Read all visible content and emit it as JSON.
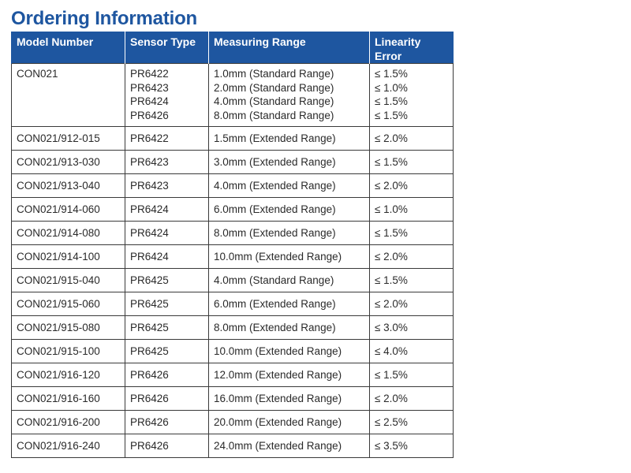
{
  "title": "Ordering Information",
  "table": {
    "headers": {
      "model": "Model Number",
      "sensor": "Sensor Type",
      "range": "Measuring Range",
      "linearity_line1": "Linearity",
      "linearity_line2": "Error"
    },
    "first_row": {
      "model": "CON021",
      "sensors": [
        "PR6422",
        "PR6423",
        "PR6424",
        "PR6426"
      ],
      "ranges": [
        "1.0mm (Standard Range)",
        "2.0mm (Standard Range)",
        "4.0mm (Standard Range)",
        "8.0mm (Standard Range)"
      ],
      "errors": [
        "≤ 1.5%",
        "≤ 1.0%",
        "≤ 1.5%",
        "≤ 1.5%"
      ]
    },
    "rows": [
      {
        "model": "CON021/912-015",
        "sensor": "PR6422",
        "range": "1.5mm (Extended Range)",
        "error": "≤ 2.0%"
      },
      {
        "model": "CON021/913-030",
        "sensor": "PR6423",
        "range": "3.0mm (Extended Range)",
        "error": "≤ 1.5%"
      },
      {
        "model": "CON021/913-040",
        "sensor": "PR6423",
        "range": "4.0mm (Extended Range)",
        "error": "≤ 2.0%"
      },
      {
        "model": "CON021/914-060",
        "sensor": "PR6424",
        "range": "6.0mm (Extended Range)",
        "error": "≤ 1.0%"
      },
      {
        "model": "CON021/914-080",
        "sensor": "PR6424",
        "range": "8.0mm (Extended Range)",
        "error": "≤ 1.5%"
      },
      {
        "model": "CON021/914-100",
        "sensor": "PR6424",
        "range": "10.0mm (Extended Range)",
        "error": "≤ 2.0%"
      },
      {
        "model": "CON021/915-040",
        "sensor": "PR6425",
        "range": "4.0mm (Standard Range)",
        "error": "≤ 1.5%"
      },
      {
        "model": "CON021/915-060",
        "sensor": "PR6425",
        "range": "6.0mm (Extended Range)",
        "error": "≤ 2.0%"
      },
      {
        "model": "CON021/915-080",
        "sensor": "PR6425",
        "range": "8.0mm (Extended Range)",
        "error": "≤ 3.0%"
      },
      {
        "model": "CON021/915-100",
        "sensor": "PR6425",
        "range": "10.0mm (Extended Range)",
        "error": "≤ 4.0%"
      },
      {
        "model": "CON021/916-120",
        "sensor": "PR6426",
        "range": "12.0mm (Extended Range)",
        "error": "≤ 1.5%"
      },
      {
        "model": "CON021/916-160",
        "sensor": "PR6426",
        "range": "16.0mm (Extended Range)",
        "error": "≤ 2.0%"
      },
      {
        "model": "CON021/916-200",
        "sensor": "PR6426",
        "range": "20.0mm (Extended Range)",
        "error": "≤ 2.5%"
      },
      {
        "model": "CON021/916-240",
        "sensor": "PR6426",
        "range": "24.0mm (Extended Range)",
        "error": "≤ 3.5%"
      }
    ]
  },
  "colors": {
    "accent": "#1e56a0",
    "header_text": "#ffffff",
    "border": "#3a3a3a"
  }
}
